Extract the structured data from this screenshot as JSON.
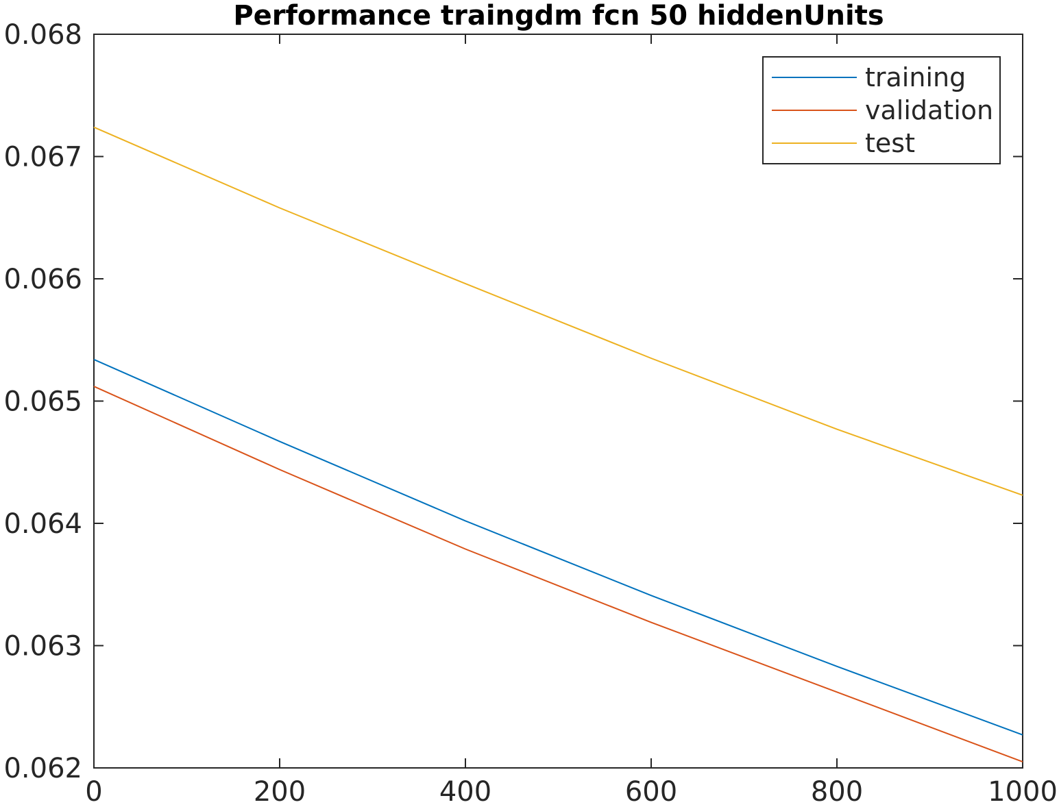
{
  "chart_data": {
    "type": "line",
    "title": "Performance traingdm fcn 50 hiddenUnits",
    "xlabel": "",
    "ylabel": "",
    "xlim": [
      0,
      1000
    ],
    "ylim": [
      0.062,
      0.068
    ],
    "x_ticks": [
      0,
      200,
      400,
      600,
      800,
      1000
    ],
    "x_tick_labels": [
      "0",
      "200",
      "400",
      "600",
      "800",
      "1000"
    ],
    "y_ticks": [
      0.062,
      0.063,
      0.064,
      0.065,
      0.066,
      0.067,
      0.068
    ],
    "y_tick_labels": [
      "0.062",
      "0.063",
      "0.064",
      "0.065",
      "0.066",
      "0.067",
      "0.068"
    ],
    "grid": false,
    "legend_position": "top-right",
    "x": [
      0,
      200,
      400,
      600,
      800,
      1000
    ],
    "series": [
      {
        "name": "training",
        "color": "#0072BD",
        "values": [
          0.06534,
          0.06467,
          0.06402,
          0.06341,
          0.06283,
          0.06227
        ]
      },
      {
        "name": "validation",
        "color": "#D95319",
        "values": [
          0.06512,
          0.06444,
          0.06379,
          0.06319,
          0.06262,
          0.06205
        ]
      },
      {
        "name": "test",
        "color": "#EDB120",
        "values": [
          0.06724,
          0.06658,
          0.06596,
          0.06535,
          0.06477,
          0.06423
        ]
      }
    ]
  }
}
